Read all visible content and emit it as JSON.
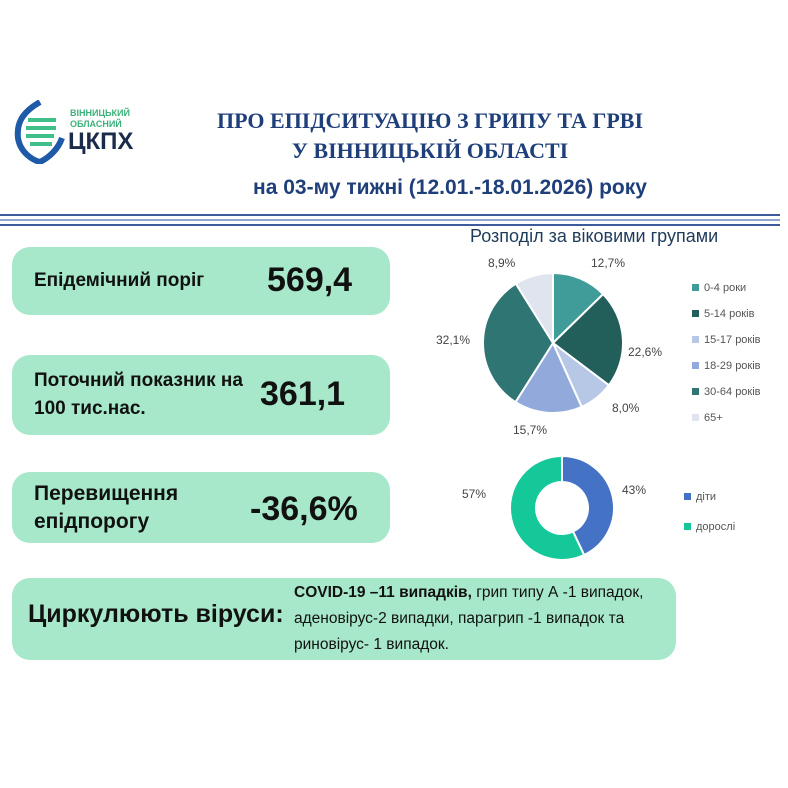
{
  "logo": {
    "line1": "ВІННИЦЬКИЙ",
    "line2": "ОБЛАСНИЙ",
    "name": "ЦКПХ"
  },
  "header": {
    "title1": "ПРО ЕПІДСИТУАЦІЮ З ГРИПУ ТА ГРВІ",
    "title2": "У ВІННИЦЬКІЙ ОБЛАСТІ",
    "subtitle": "на 03-му тижні (12.01.-18.01.2026) року"
  },
  "stats": [
    {
      "label": "Епідемічний поріг",
      "value": "569,4"
    },
    {
      "label": "Поточний показник на 100 тис.нас.",
      "value": "361,1"
    },
    {
      "label": "Перевищення епідпорогу",
      "value": "-36,6%"
    }
  ],
  "viruses": {
    "label": "Циркулюють віруси:",
    "text_bold": "COVID-19 –11 випадків,",
    "text": " грип типу А -1 випадок, аденовірус-2 випадки, парагрип -1 випадок та риновірус- 1 випадок."
  },
  "chart_data": [
    {
      "type": "pie",
      "title": "Розподіл за віковими групами",
      "categories": [
        "0-4 роки",
        "5-14 років",
        "15-17 років",
        "18-29 років",
        "30-64 років",
        "65+"
      ],
      "values": [
        12.7,
        22.6,
        8.0,
        15.7,
        32.1,
        8.9
      ],
      "labels": [
        "12,7%",
        "22,6%",
        "8,0%",
        "15,7%",
        "32,1%",
        "8,9%"
      ],
      "colors": [
        "#3f9c98",
        "#225e5a",
        "#b7c8e6",
        "#92aadb",
        "#2f7574",
        "#dfe4ef"
      ],
      "legend": "right"
    },
    {
      "type": "pie",
      "donut": true,
      "title": "",
      "categories": [
        "діти",
        "дорослі"
      ],
      "values": [
        43,
        57
      ],
      "labels": [
        "43%",
        "57%"
      ],
      "colors": [
        "#4472c4",
        "#14c89a"
      ],
      "legend": "right"
    }
  ]
}
